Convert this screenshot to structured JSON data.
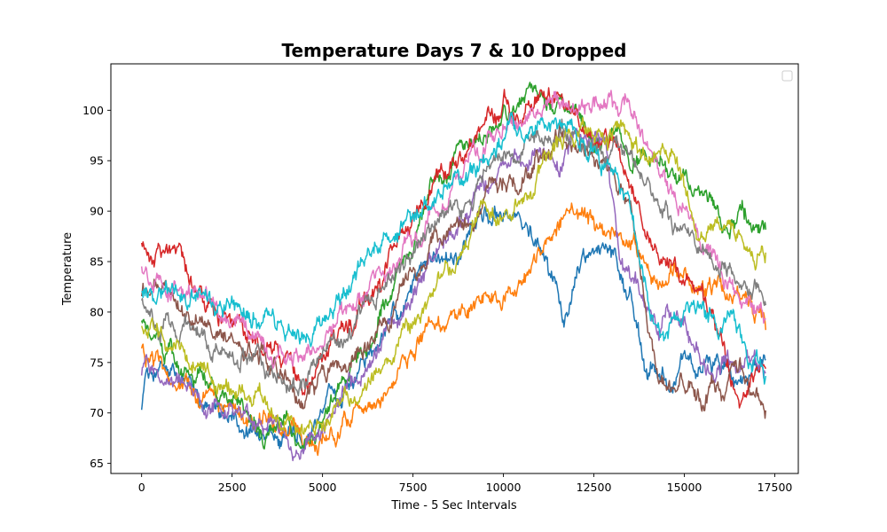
{
  "chart_data": {
    "type": "line",
    "title": "Temperature Days 7 & 10 Dropped",
    "xlabel": "Time - 5 Sec Intervals",
    "ylabel": "Temperature",
    "xlim": [
      -850,
      18150
    ],
    "ylim": [
      64,
      104.6
    ],
    "xticks": [
      0,
      2500,
      5000,
      7500,
      10000,
      12500,
      15000,
      17500
    ],
    "yticks": [
      65,
      70,
      75,
      80,
      85,
      90,
      95,
      100
    ],
    "grid": false,
    "legend": {
      "placement": "top-right",
      "entries": []
    },
    "noise": 1.1,
    "series": [
      {
        "color": "#1f77b4",
        "x": [
          0,
          100,
          1500,
          3000,
          4500,
          6000,
          8000,
          10000,
          11200,
          11700,
          12200,
          12900,
          13500,
          14000,
          14500,
          15500,
          16500,
          17250
        ],
        "y": [
          70,
          74,
          72,
          68,
          68,
          74,
          84,
          91,
          86,
          78,
          84,
          85,
          81,
          74,
          74,
          75,
          73,
          75
        ]
      },
      {
        "color": "#ff7f0e",
        "x": [
          0,
          300,
          1500,
          3000,
          4500,
          5500,
          6500,
          7500,
          8500,
          9500,
          10500,
          11200,
          11700,
          12500,
          13500,
          14500,
          15500,
          16500,
          17250
        ],
        "y": [
          76,
          75,
          72,
          70,
          67,
          69,
          73,
          77,
          79,
          81,
          85,
          88,
          90,
          88,
          87,
          84,
          82,
          80,
          78
        ]
      },
      {
        "color": "#2ca02c",
        "x": [
          0,
          1500,
          3000,
          4500,
          6000,
          8000,
          10000,
          11000,
          12000,
          13000,
          14000,
          15000,
          16000,
          17250
        ],
        "y": [
          79,
          73,
          70,
          67,
          76,
          92,
          100,
          102,
          100,
          97,
          96,
          92,
          90,
          88
        ]
      },
      {
        "color": "#d62728",
        "x": [
          0,
          1000,
          2500,
          3500,
          4500,
          6000,
          8000,
          10000,
          11000,
          12000,
          13000,
          14000,
          15000,
          16000,
          16500,
          17250
        ],
        "y": [
          87,
          85,
          79,
          76,
          73,
          80,
          92,
          100,
          101,
          99,
          96,
          88,
          82,
          77,
          71,
          74
        ]
      },
      {
        "color": "#9467bd",
        "x": [
          0,
          1500,
          3000,
          4500,
          6000,
          8000,
          10000,
          11000,
          12000,
          12800,
          13200,
          14000,
          15000,
          16000,
          17250
        ],
        "y": [
          74,
          71,
          69,
          66,
          73,
          85,
          93,
          96,
          97,
          96,
          86,
          81,
          78,
          76,
          73
        ]
      },
      {
        "color": "#8c564b",
        "x": [
          0,
          1500,
          3000,
          4500,
          6000,
          8000,
          10000,
          11500,
          12500,
          13500,
          14000,
          14500,
          15500,
          16500,
          17250
        ],
        "y": [
          82,
          79,
          77,
          72,
          76,
          86,
          93,
          97,
          96,
          91,
          77,
          73,
          72,
          73,
          71
        ]
      },
      {
        "color": "#e377c2",
        "x": [
          0,
          1500,
          3000,
          4500,
          6000,
          8000,
          10000,
          11500,
          12500,
          13500,
          14500,
          15500,
          16500,
          17250
        ],
        "y": [
          84,
          82,
          78,
          75,
          81,
          90,
          98,
          101,
          101,
          101,
          93,
          87,
          82,
          80
        ]
      },
      {
        "color": "#7f7f7f",
        "x": [
          0,
          1500,
          3000,
          4500,
          6000,
          8000,
          10000,
          11500,
          12500,
          13500,
          14500,
          15500,
          16500,
          17250
        ],
        "y": [
          81,
          78,
          76,
          73,
          80,
          88,
          96,
          98,
          97,
          95,
          90,
          86,
          84,
          82
        ]
      },
      {
        "color": "#bcbd22",
        "x": [
          0,
          1500,
          3000,
          4500,
          6000,
          8000,
          10000,
          11500,
          12500,
          13500,
          14500,
          15500,
          16500,
          17250
        ],
        "y": [
          79,
          75,
          72,
          69,
          72,
          82,
          91,
          96,
          98,
          98,
          94,
          89,
          87,
          85
        ]
      },
      {
        "color": "#17becf",
        "x": [
          0,
          1500,
          3000,
          4000,
          4500,
          5500,
          7000,
          9000,
          10500,
          11500,
          12500,
          13500,
          14000,
          14500,
          15500,
          16500,
          17250
        ],
        "y": [
          82,
          81,
          80,
          78,
          77,
          81,
          88,
          94,
          98,
          99,
          97,
          91,
          81,
          78,
          80,
          77,
          74
        ]
      }
    ]
  }
}
